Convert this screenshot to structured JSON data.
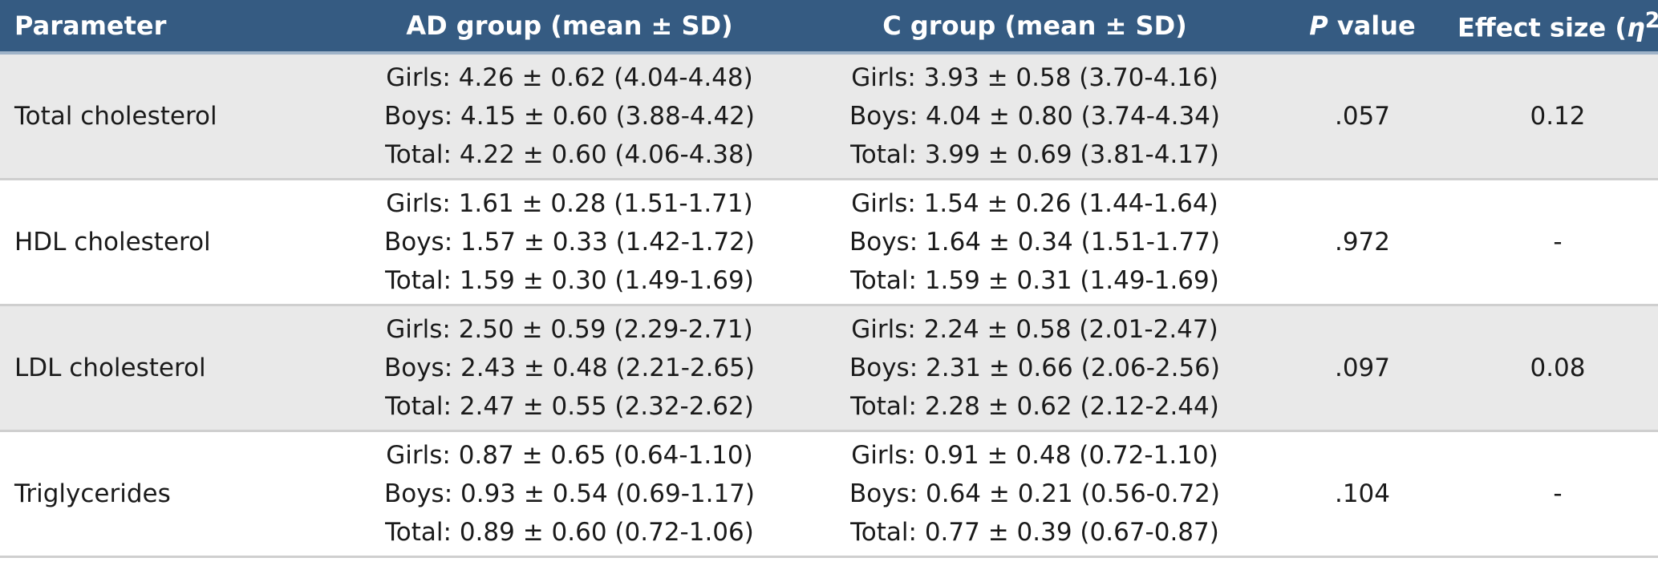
{
  "header": {
    "parameter": "Parameter",
    "ad_group": "AD group (mean ± SD)",
    "c_group": "C group (mean ± SD)",
    "p_value_italic": "P",
    "p_value_rest": " value",
    "effect_size_prefix": "Effect size (",
    "effect_size_symbol": "η",
    "effect_size_sup": "2",
    "effect_size_suffix": ")"
  },
  "rows": [
    {
      "parameter": "Total cholesterol",
      "ad": [
        "Girls: 4.26 ± 0.62 (4.04-4.48)",
        "Boys: 4.15 ± 0.60 (3.88-4.42)",
        "Total: 4.22 ± 0.60 (4.06-4.38)"
      ],
      "c": [
        "Girls: 3.93 ± 0.58 (3.70-4.16)",
        "Boys: 4.04 ± 0.80 (3.74-4.34)",
        "Total: 3.99 ± 0.69 (3.81-4.17)"
      ],
      "p": ".057",
      "effect": "0.12"
    },
    {
      "parameter": "HDL cholesterol",
      "ad": [
        "Girls: 1.61 ± 0.28 (1.51-1.71)",
        "Boys: 1.57 ± 0.33 (1.42-1.72)",
        "Total: 1.59 ± 0.30 (1.49-1.69)"
      ],
      "c": [
        "Girls: 1.54 ± 0.26 (1.44-1.64)",
        "Boys: 1.64 ± 0.34 (1.51-1.77)",
        "Total: 1.59 ± 0.31 (1.49-1.69)"
      ],
      "p": ".972",
      "effect": "-"
    },
    {
      "parameter": "LDL cholesterol",
      "ad": [
        "Girls: 2.50 ± 0.59 (2.29-2.71)",
        "Boys: 2.43 ± 0.48 (2.21-2.65)",
        "Total: 2.47 ± 0.55 (2.32-2.62)"
      ],
      "c": [
        "Girls: 2.24 ± 0.58 (2.01-2.47)",
        "Boys: 2.31 ± 0.66 (2.06-2.56)",
        "Total: 2.28 ± 0.62 (2.12-2.44)"
      ],
      "p": ".097",
      "effect": "0.08"
    },
    {
      "parameter": "Triglycerides",
      "ad": [
        "Girls: 0.87 ± 0.65 (0.64-1.10)",
        "Boys: 0.93 ± 0.54 (0.69-1.17)",
        "Total: 0.89 ± 0.60 (0.72-1.06)"
      ],
      "c": [
        "Girls: 0.91 ± 0.48 (0.72-1.10)",
        "Boys: 0.64 ± 0.21 (0.56-0.72)",
        "Total: 0.77 ± 0.39 (0.67-0.87)"
      ],
      "p": ".104",
      "effect": "-"
    }
  ],
  "colors": {
    "header_bg": "#355b82",
    "row_shaded_bg": "#e9e9e9",
    "row_divider": "#cfcfcf"
  }
}
